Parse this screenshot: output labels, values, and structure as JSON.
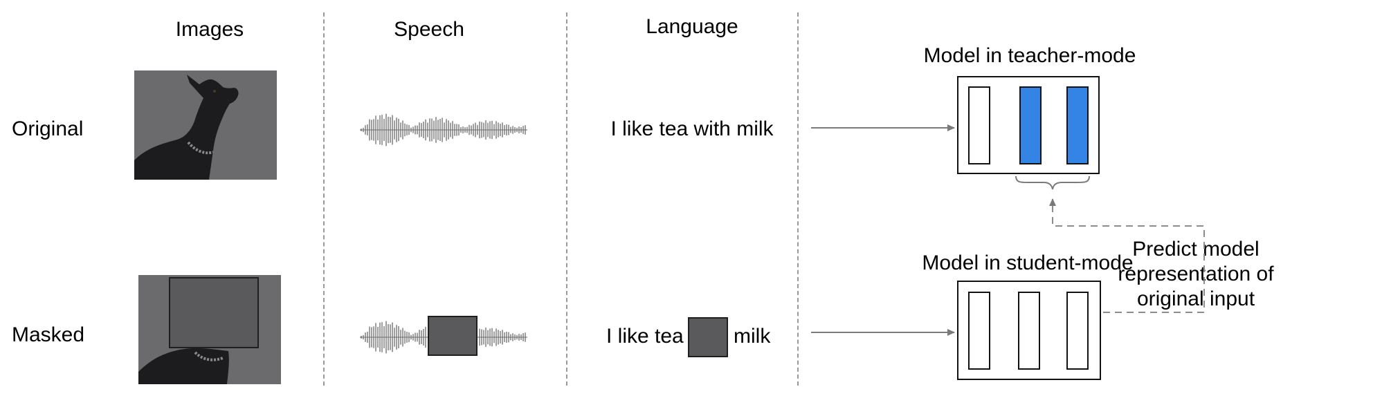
{
  "columns": {
    "images": "Images",
    "speech": "Speech",
    "language": "Language"
  },
  "rows": {
    "original": "Original",
    "masked": "Masked"
  },
  "language": {
    "original_sentence": "I like tea with milk",
    "masked_before": "I like tea",
    "masked_after": "milk"
  },
  "models": {
    "teacher_title": "Model in teacher-mode",
    "student_title": "Model in student-mode",
    "teacher_blocks": [
      "plain",
      "highlighted",
      "highlighted"
    ],
    "student_blocks": [
      "plain",
      "plain",
      "plain"
    ]
  },
  "prediction_label": {
    "line1": "Predict model",
    "line2": "representation of",
    "line3": "original input"
  },
  "colors": {
    "highlight": "#3384e4",
    "mask": "#5a5a5c",
    "photo_background": "#6b6b6d",
    "dog": "#1c1c1e",
    "separator": "#9a9a9a",
    "arrow": "#7a7a7a"
  },
  "icons": [
    "dog-photo",
    "waveform"
  ]
}
